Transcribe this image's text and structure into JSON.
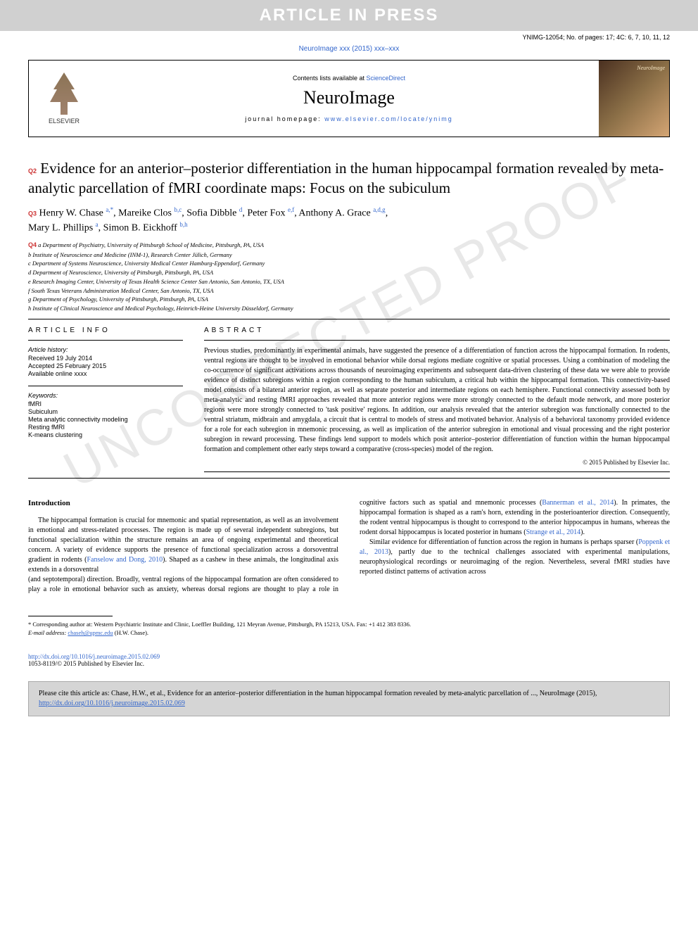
{
  "banner": "ARTICLE IN PRESS",
  "doc_info": "YNIMG-12054; No. of pages: 17; 4C: 6, 7, 10, 11, 12",
  "journal_ref": "NeuroImage xxx (2015) xxx–xxx",
  "header": {
    "contents_prefix": "Contents lists available at ",
    "contents_link": "ScienceDirect",
    "journal": "NeuroImage",
    "homepage_prefix": "journal homepage: ",
    "homepage_url": "www.elsevier.com/locate/ynimg",
    "publisher": "ELSEVIER",
    "cover_label": "NeuroImage"
  },
  "badges": {
    "q2": "Q2",
    "q3": "Q3",
    "q4": "Q4"
  },
  "title": "Evidence for an anterior–posterior differentiation in the human hippocampal formation revealed by meta-analytic parcellation of fMRI coordinate maps: Focus on the subiculum",
  "authors_line1": "Henry W. Chase ",
  "authors_sup1": "a,*",
  "authors_a2": ", Mareike Clos ",
  "authors_sup2": "b,c",
  "authors_a3": ", Sofia Dibble ",
  "authors_sup3": "d",
  "authors_a4": ", Peter Fox ",
  "authors_sup4": "e,f",
  "authors_a5": ", Anthony A. Grace ",
  "authors_sup5": "a,d,g",
  "authors_a6": ",",
  "authors_line2a": "Mary L. Phillips ",
  "authors_sup6": "a",
  "authors_line2b": ", Simon B. Eickhoff ",
  "authors_sup7": "b,h",
  "affiliations": [
    "a Department of Psychiatry, University of Pittsburgh School of Medicine, Pittsburgh, PA, USA",
    "b Institute of Neuroscience and Medicine (INM-1), Research Center Jülich, Germany",
    "c Department of Systems Neuroscience, University Medical Center Hamburg-Eppendorf, Germany",
    "d Department of Neuroscience, University of Pittsburgh, Pittsburgh, PA, USA",
    "e Research Imaging Center, University of Texas Health Science Center San Antonio, San Antonio, TX, USA",
    "f South Texas Veterans Administration Medical Center, San Antonio, TX, USA",
    "g Department of Psychology, University of Pittsburgh, Pittsburgh, PA, USA",
    "h Institute of Clinical Neuroscience and Medical Psychology, Heinrich-Heine University Düsseldorf, Germany"
  ],
  "article_info_heading": "ARTICLE INFO",
  "history_label": "Article history:",
  "history": [
    "Received 19 July 2014",
    "Accepted 25 February 2015",
    "Available online xxxx"
  ],
  "keywords_label": "Keywords:",
  "keywords": [
    "fMRI",
    "Subiculum",
    "Meta analytic connectivity modeling",
    "Resting fMRI",
    "K-means clustering"
  ],
  "abstract_heading": "ABSTRACT",
  "abstract": "Previous studies, predominantly in experimental animals, have suggested the presence of a differentiation of function across the hippocampal formation. In rodents, ventral regions are thought to be involved in emotional behavior while dorsal regions mediate cognitive or spatial processes. Using a combination of modeling the co-occurrence of significant activations across thousands of neuroimaging experiments and subsequent data-driven clustering of these data we were able to provide evidence of distinct subregions within a region corresponding to the human subiculum, a critical hub within the hippocampal formation. This connectivity-based model consists of a bilateral anterior region, as well as separate posterior and intermediate regions on each hemisphere. Functional connectivity assessed both by meta-analytic and resting fMRI approaches revealed that more anterior regions were more strongly connected to the default mode network, and more posterior regions were more strongly connected to 'task positive' regions. In addition, our analysis revealed that the anterior subregion was functionally connected to the ventral striatum, midbrain and amygdala, a circuit that is central to models of stress and motivated behavior. Analysis of a behavioral taxonomy provided evidence for a role for each subregion in mnemonic processing, as well as implication of the anterior subregion in emotional and visual processing and the right posterior subregion in reward processing. These findings lend support to models which posit anterior–posterior differentiation of function within the human hippocampal formation and complement other early steps toward a comparative (cross-species) model of the region.",
  "copyright": "© 2015 Published by Elsevier Inc.",
  "intro_heading": "Introduction",
  "intro_p1": "The hippocampal formation is crucial for mnemonic and spatial representation, as well as an involvement in emotional and stress-related processes. The region is made up of several independent subregions, but functional specialization within the structure remains an area of ongoing experimental and theoretical concern. A variety of evidence supports the presence of functional specialization across a dorsoventral gradient in rodents (",
  "intro_ref1": "Fanselow and Dong, 2010",
  "intro_p1b": "). Shaped as a cashew in these animals, the longitudinal axis extends in a dorsoventral",
  "intro_p2a": "(and septotemporal) direction. Broadly, ventral regions of the hippocampal formation are often considered to play a role in emotional behavior such as anxiety, whereas dorsal regions are thought to play a role in cognitive factors such as spatial and mnemonic processes (",
  "intro_ref2": "Bannerman et al., 2014",
  "intro_p2b": "). In primates, the hippocampal formation is shaped as a ram's horn, extending in the posterioanterior direction. Consequently, the rodent ventral hippocampus is thought to correspond to the anterior hippocampus in humans, whereas the rodent dorsal hippocampus is located posterior in humans (",
  "intro_ref3": "Strange et al., 2014",
  "intro_p2c": ").",
  "intro_p3a": "Similar evidence for differentiation of function across the region in humans is perhaps sparser (",
  "intro_ref4": "Poppenk et al., 2013",
  "intro_p3b": "), partly due to the technical challenges associated with experimental manipulations, neurophysiological recordings or neuroimaging of the region. Nevertheless, several fMRI studies have reported distinct patterns of activation across",
  "footnote_star": "* Corresponding author at: Western Psychiatric Institute and Clinic, Loeffler Building, 121 Meyran Avenue, Pittsburgh, PA 15213, USA. Fax: +1 412 383 8336.",
  "footnote_email_label": "E-mail address: ",
  "footnote_email": "chaseh@upmc.edu",
  "footnote_email_suffix": " (H.W. Chase).",
  "doi_url": "http://dx.doi.org/10.1016/j.neuroimage.2015.02.069",
  "issn": "1053-8119/© 2015 Published by Elsevier Inc.",
  "cite_box_a": "Please cite this article as: Chase, H.W., et al., Evidence for an anterior–posterior differentiation in the human hippocampal formation revealed by meta-analytic parcellation of ..., NeuroImage (2015), ",
  "cite_box_url": "http://dx.doi.org/10.1016/j.neuroimage.2015.02.069",
  "watermark": "UNCORRECTED PROOF",
  "line_numbers": {
    "title_start": 2,
    "title_end": 3,
    "authors_l1": 5,
    "affil_start": 6,
    "affil_end": 13,
    "info_heading": 14,
    "history_start": 15,
    "history_end": 18,
    "keywords_start": 19,
    "keywords_end": 24,
    "abstract_start": 25,
    "abstract_end": 41,
    "post_abstract": [
      43,
      44
    ],
    "intro_heading": 46,
    "intro_left_start": 47,
    "intro_left_end": 54,
    "intro_right_start": 55,
    "intro_right_end": 69
  },
  "colors": {
    "banner_bg": "#d0d0d0",
    "banner_text": "#ffffff",
    "link": "#3366cc",
    "badge": "#cc3333",
    "cite_bg": "#d5d5d5",
    "watermark": "#e8e8e8"
  }
}
